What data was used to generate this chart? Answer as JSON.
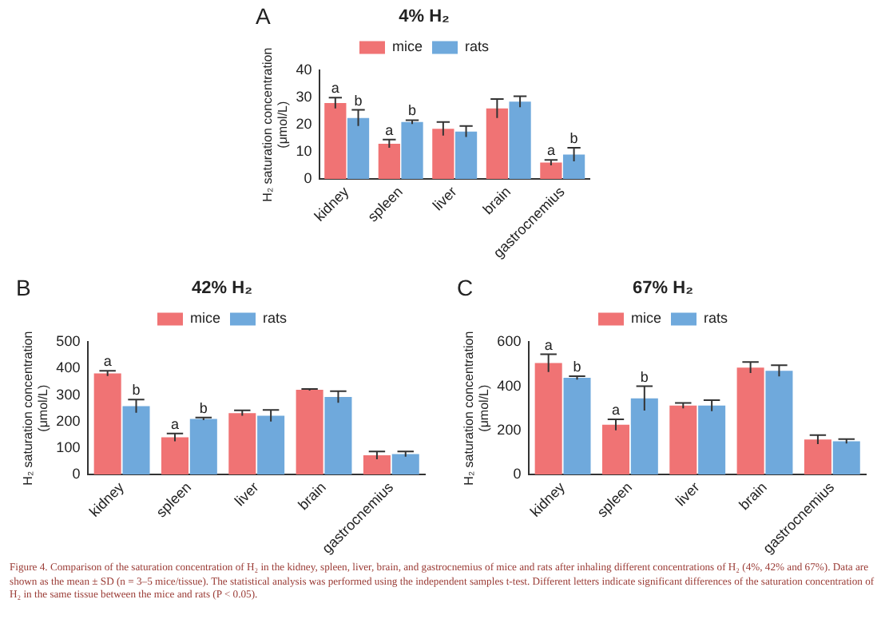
{
  "chart_data": [
    {
      "type": "bar",
      "title": "4% H₂",
      "ylabel": "H₂ saturation concentration\n(μmol/L)",
      "categories": [
        "kidney",
        "spleen",
        "liver",
        "brain",
        "gastrocnemius"
      ],
      "series": [
        {
          "name": "mice",
          "color": "#f07374",
          "values": [
            28,
            13,
            18.5,
            26,
            6
          ],
          "errors": [
            2,
            1.5,
            2.5,
            3.5,
            1
          ]
        },
        {
          "name": "rats",
          "color": "#6fa9dc",
          "values": [
            22.5,
            21,
            17.5,
            28.5,
            9
          ],
          "errors": [
            3,
            0.7,
            2,
            2,
            2.5
          ]
        }
      ],
      "ylim": [
        0,
        40
      ],
      "yticks": [
        0,
        10,
        20,
        30,
        40
      ],
      "grid": false,
      "legend": "top",
      "annotations": [
        "A",
        {
          "text": "a",
          "x": "kidney",
          "y": 30
        },
        {
          "text": "b",
          "x": "kidney",
          "y": 25.5
        },
        {
          "text": "a",
          "x": "spleen",
          "y": 14.5
        },
        {
          "text": "b",
          "x": "spleen",
          "y": 21.7
        },
        {
          "text": "a",
          "x": "gastrocnemius",
          "y": 7
        },
        {
          "text": "b",
          "x": "gastrocnemius",
          "y": 11.5
        }
      ]
    },
    {
      "type": "bar",
      "title": "42% H₂",
      "ylabel": "H₂ saturation concentration\n(μmol/L)",
      "categories": [
        "kidney",
        "spleen",
        "liver",
        "brain",
        "gastrocnemius"
      ],
      "series": [
        {
          "name": "mice",
          "color": "#f07374",
          "values": [
            382,
            140,
            232,
            320,
            72
          ],
          "errors": [
            10,
            15,
            10,
            3,
            15
          ]
        },
        {
          "name": "rats",
          "color": "#6fa9dc",
          "values": [
            258,
            210,
            222,
            293,
            77
          ],
          "errors": [
            25,
            5,
            22,
            22,
            10
          ]
        }
      ],
      "ylim": [
        0,
        500
      ],
      "yticks": [
        0,
        100,
        200,
        300,
        400,
        500
      ],
      "grid": false,
      "legend": "top",
      "annotations": [
        "B",
        {
          "text": "a",
          "x": "kidney",
          "y": 392
        },
        {
          "text": "b",
          "x": "kidney",
          "y": 283
        },
        {
          "text": "a",
          "x": "spleen",
          "y": 155
        },
        {
          "text": "b",
          "x": "spleen",
          "y": 215
        }
      ]
    },
    {
      "type": "bar",
      "title": "67% H₂",
      "ylabel": "H₂ saturation concentration\n(μmol/L)",
      "categories": [
        "kidney",
        "spleen",
        "liver",
        "brain",
        "gastrocnemius"
      ],
      "series": [
        {
          "name": "mice",
          "color": "#f07374",
          "values": [
            505,
            225,
            312,
            485,
            158
          ],
          "errors": [
            40,
            25,
            12,
            25,
            20
          ]
        },
        {
          "name": "rats",
          "color": "#6fa9dc",
          "values": [
            438,
            345,
            312,
            470,
            150
          ],
          "errors": [
            8,
            55,
            25,
            25,
            10
          ]
        }
      ],
      "ylim": [
        0,
        600
      ],
      "yticks": [
        0,
        200,
        400,
        600
      ],
      "grid": false,
      "legend": "top",
      "annotations": [
        "C",
        {
          "text": "a",
          "x": "kidney",
          "y": 545
        },
        {
          "text": "b",
          "x": "kidney",
          "y": 446
        },
        {
          "text": "a",
          "x": "spleen",
          "y": 250
        },
        {
          "text": "b",
          "x": "spleen",
          "y": 400
        }
      ]
    },
    {
      "type": "other",
      "annotations": [
        "Figure 4. Comparison of the saturation concentration of H₂ in the kidney, spleen, liver, brain, and gastrocnemius of mice and rats after inhaling different concentrations of H₂ (4%, 42% and 67%). Data are shown as the mean ± SD (n = 3–5 mice/tissue). The statistical analysis was performed using the independent samples t-test. Different letters indicate significant differences of the saturation concentration of H₂ in the same tissue between the mice and rats (P < 0.05)."
      ]
    }
  ]
}
